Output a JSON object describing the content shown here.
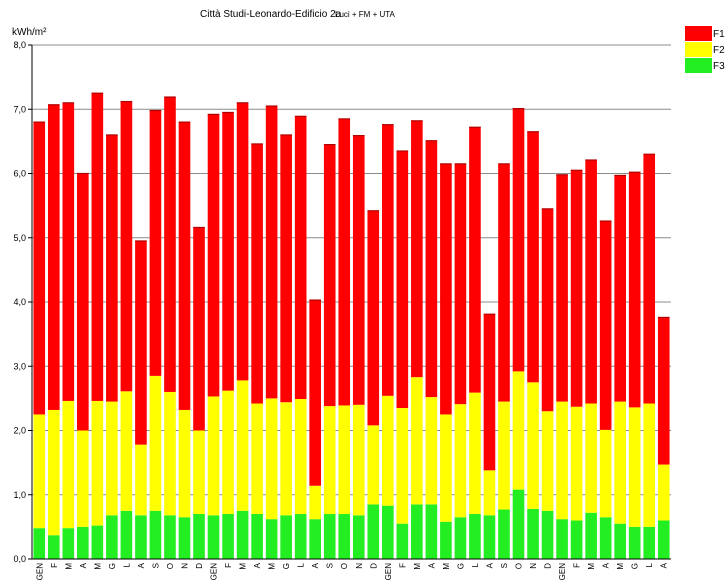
{
  "chart_data": {
    "type": "bar",
    "stacked": true,
    "title": "Città Studi-Leonardo-Edificio 2a",
    "subtitle": "Luci + FM + UTA",
    "ylabel": "kWh/m²",
    "ylim": [
      0,
      8
    ],
    "ytick_labels": [
      "0,0",
      "1,0",
      "2,0",
      "3,0",
      "4,0",
      "5,0",
      "6,0",
      "7,0",
      "8,0"
    ],
    "grid": true,
    "legend_position": "top-right",
    "categories": [
      "GEN",
      "F",
      "M",
      "A",
      "M",
      "G",
      "L",
      "A",
      "S",
      "O",
      "N",
      "D",
      "GEN",
      "F",
      "M",
      "A",
      "M",
      "G",
      "L",
      "A",
      "S",
      "O",
      "N",
      "D",
      "GEN",
      "F",
      "M",
      "A",
      "M",
      "G",
      "L",
      "A",
      "S",
      "O",
      "N",
      "D",
      "GEN",
      "F",
      "M",
      "A",
      "M",
      "G",
      "L",
      "A"
    ],
    "series": [
      {
        "name": "F3",
        "color": "#22ee22",
        "values": [
          0.48,
          0.37,
          0.48,
          0.5,
          0.52,
          0.68,
          0.75,
          0.68,
          0.75,
          0.68,
          0.65,
          0.7,
          0.68,
          0.7,
          0.75,
          0.7,
          0.62,
          0.68,
          0.7,
          0.62,
          0.7,
          0.7,
          0.68,
          0.85,
          0.83,
          0.55,
          0.85,
          0.85,
          0.58,
          0.65,
          0.7,
          0.68,
          0.77,
          1.08,
          0.78,
          0.75,
          0.62,
          0.6,
          0.72,
          0.65,
          0.55,
          0.5,
          0.5,
          0.6
        ]
      },
      {
        "name": "F2",
        "color": "#ffff00",
        "values": [
          1.77,
          1.95,
          1.98,
          1.5,
          1.94,
          1.77,
          1.86,
          1.1,
          2.1,
          1.92,
          1.67,
          1.3,
          1.85,
          1.92,
          2.03,
          1.72,
          1.88,
          1.76,
          1.79,
          0.52,
          1.68,
          1.69,
          1.72,
          1.23,
          1.71,
          1.8,
          1.98,
          1.67,
          1.67,
          1.76,
          1.89,
          0.7,
          1.68,
          1.84,
          1.97,
          1.55,
          1.83,
          1.77,
          1.7,
          1.36,
          1.9,
          1.86,
          1.92,
          0.87
        ]
      },
      {
        "name": "F1",
        "color": "#ff0000",
        "values": [
          4.55,
          4.75,
          4.64,
          4.0,
          4.79,
          4.15,
          4.51,
          3.17,
          4.13,
          4.59,
          4.48,
          3.16,
          4.39,
          4.33,
          4.32,
          4.04,
          4.55,
          4.16,
          4.4,
          2.89,
          4.07,
          4.46,
          4.19,
          3.34,
          4.22,
          4.0,
          3.99,
          3.99,
          3.9,
          3.74,
          4.13,
          2.43,
          3.7,
          4.09,
          3.9,
          3.15,
          3.53,
          3.68,
          3.79,
          3.25,
          3.52,
          3.66,
          3.88,
          2.29
        ]
      }
    ]
  }
}
